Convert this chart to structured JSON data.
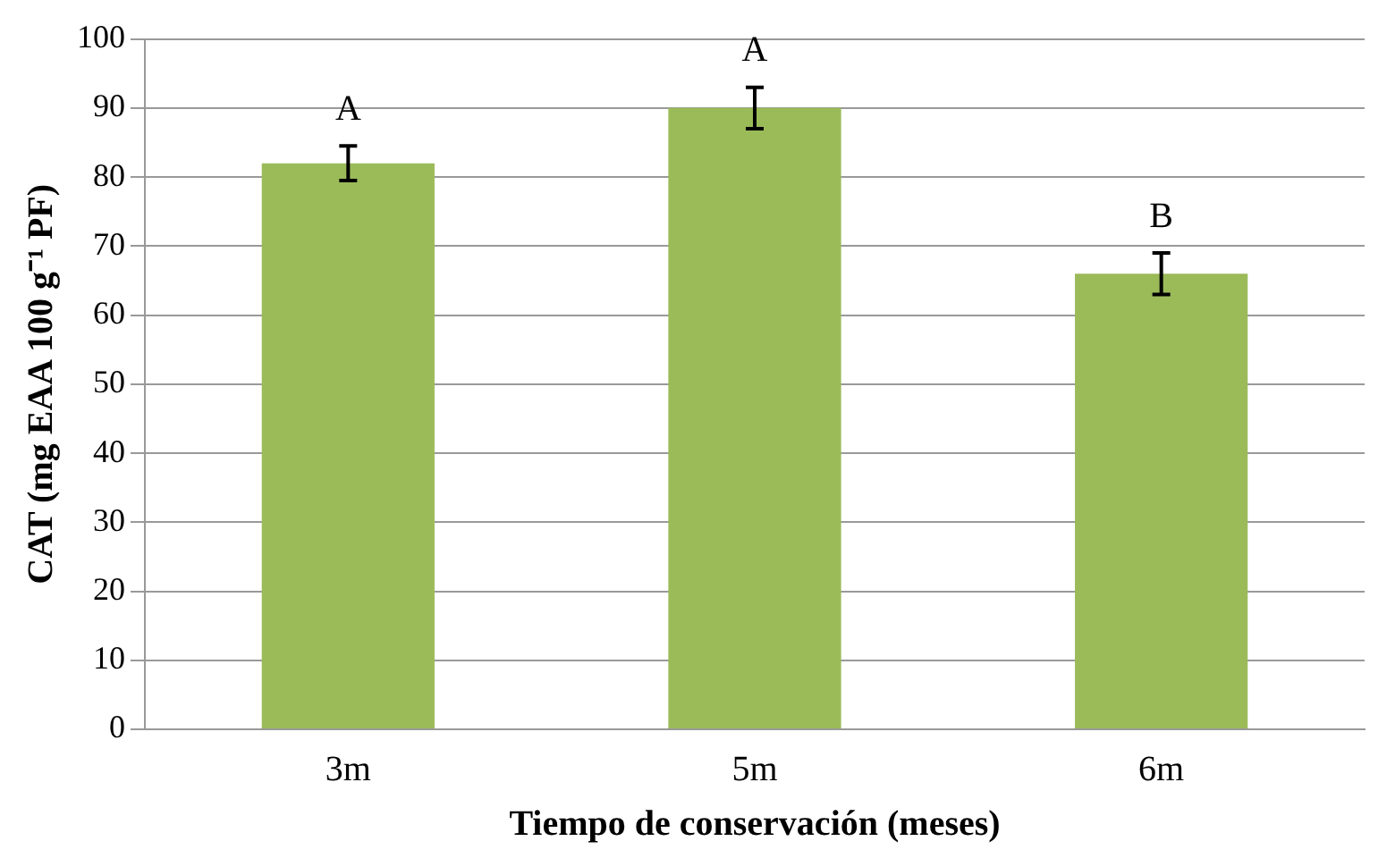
{
  "chart_data": {
    "type": "bar",
    "xlabel": "Tiempo de conservación (meses)",
    "ylabel": "CAT (mg EAA 100 g⁻¹ PF)",
    "categories": [
      "3m",
      "5m",
      "6m"
    ],
    "values": [
      82,
      90,
      66
    ],
    "errors": [
      2.5,
      3,
      3
    ],
    "color": "#9bbb59",
    "ylim": [
      0,
      100
    ],
    "yticks": [
      0,
      10,
      20,
      30,
      40,
      50,
      60,
      70,
      80,
      90,
      100
    ],
    "grid": "y",
    "annotations": [
      "A",
      "A",
      "B"
    ]
  }
}
